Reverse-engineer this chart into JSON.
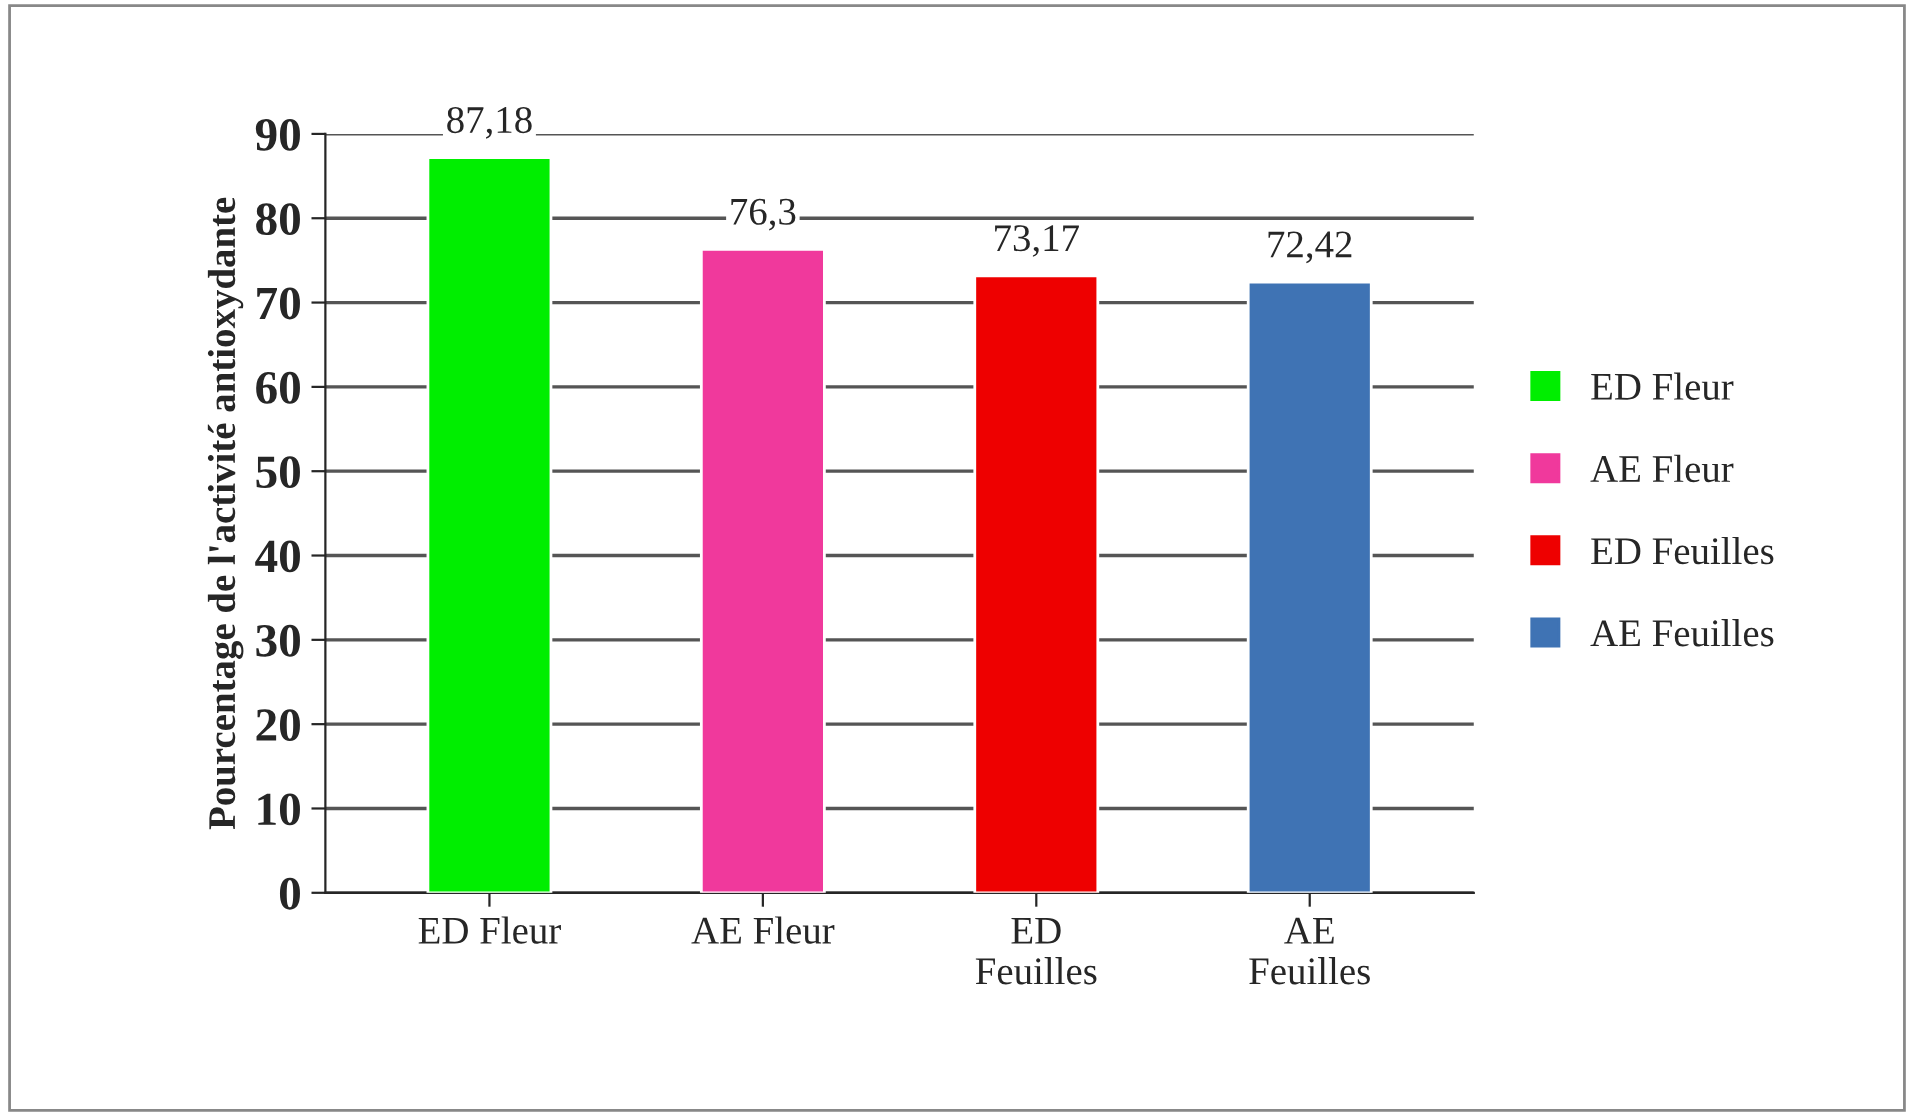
{
  "chart_data": {
    "type": "bar",
    "ylabel": "Pourcentage de l'activité antioxydante",
    "categories": [
      "ED Fleur",
      "AE Fleur",
      "ED\nFeuilles",
      "AE\nFeuilles"
    ],
    "series": [
      {
        "name": "ED Fleur",
        "color": "#00ee00",
        "values": [
          87.18,
          null,
          null,
          null
        ],
        "value_labels": [
          "87,18",
          null,
          null,
          null
        ]
      },
      {
        "name": "AE Fleur",
        "color": "#f0399c",
        "values": [
          null,
          76.3,
          null,
          null
        ],
        "value_labels": [
          null,
          "76,3",
          null,
          null
        ]
      },
      {
        "name": "ED Feuilles",
        "color": "#ee0000",
        "values": [
          null,
          null,
          73.17,
          null
        ],
        "value_labels": [
          null,
          null,
          "73,17",
          null
        ]
      },
      {
        "name": "AE Feuilles",
        "color": "#3f73b4",
        "values": [
          null,
          null,
          null,
          72.42
        ],
        "value_labels": [
          null,
          null,
          null,
          "72,42"
        ]
      }
    ],
    "ylim": [
      0,
      90
    ],
    "yticks": [
      0,
      10,
      20,
      30,
      40,
      50,
      60,
      70,
      80,
      90
    ],
    "grid": "y",
    "legend": "right"
  }
}
